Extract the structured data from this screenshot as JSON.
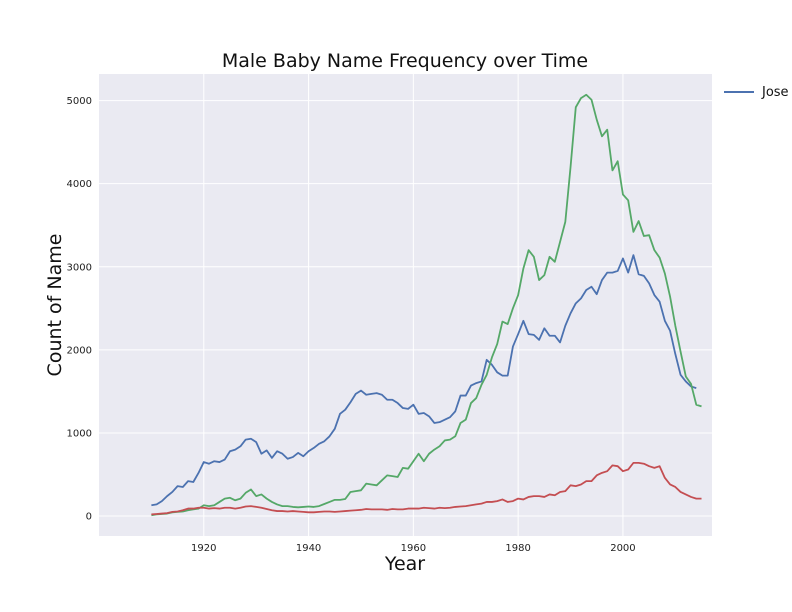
{
  "chart_data": {
    "type": "line",
    "title": "Male Baby Name Frequency over Time",
    "xlabel": "Year",
    "ylabel": "Count of Name",
    "xlim": [
      1910,
      2014
    ],
    "ylim": [
      0,
      5100
    ],
    "xticks": [
      1920,
      1940,
      1960,
      1980,
      2000
    ],
    "yticks": [
      0,
      1000,
      2000,
      3000,
      4000,
      5000
    ],
    "grid": true,
    "legend_position": "outside-right",
    "style": {
      "background": "#eaeaf2",
      "grid_color": "#ffffff"
    },
    "series": [
      {
        "name": "Jose",
        "color": "#4c72b0",
        "points": [
          [
            1910,
            130
          ],
          [
            1911,
            140
          ],
          [
            1912,
            180
          ],
          [
            1913,
            240
          ],
          [
            1914,
            290
          ],
          [
            1915,
            360
          ],
          [
            1916,
            350
          ],
          [
            1917,
            420
          ],
          [
            1918,
            410
          ],
          [
            1919,
            520
          ],
          [
            1920,
            650
          ],
          [
            1921,
            630
          ],
          [
            1922,
            660
          ],
          [
            1923,
            650
          ],
          [
            1924,
            680
          ],
          [
            1925,
            780
          ],
          [
            1926,
            800
          ],
          [
            1927,
            840
          ],
          [
            1928,
            920
          ],
          [
            1929,
            930
          ],
          [
            1930,
            890
          ],
          [
            1931,
            750
          ],
          [
            1932,
            790
          ],
          [
            1933,
            700
          ],
          [
            1934,
            780
          ],
          [
            1935,
            750
          ],
          [
            1936,
            690
          ],
          [
            1937,
            710
          ],
          [
            1938,
            760
          ],
          [
            1939,
            720
          ],
          [
            1940,
            780
          ],
          [
            1941,
            820
          ],
          [
            1942,
            870
          ],
          [
            1943,
            900
          ],
          [
            1944,
            960
          ],
          [
            1945,
            1050
          ],
          [
            1946,
            1230
          ],
          [
            1947,
            1280
          ],
          [
            1948,
            1370
          ],
          [
            1949,
            1470
          ],
          [
            1950,
            1510
          ],
          [
            1951,
            1460
          ],
          [
            1952,
            1470
          ],
          [
            1953,
            1480
          ],
          [
            1954,
            1460
          ],
          [
            1955,
            1400
          ],
          [
            1956,
            1400
          ],
          [
            1957,
            1360
          ],
          [
            1958,
            1300
          ],
          [
            1959,
            1290
          ],
          [
            1960,
            1340
          ],
          [
            1961,
            1230
          ],
          [
            1962,
            1240
          ],
          [
            1963,
            1200
          ],
          [
            1964,
            1120
          ],
          [
            1965,
            1130
          ],
          [
            1966,
            1160
          ],
          [
            1967,
            1190
          ],
          [
            1968,
            1260
          ],
          [
            1969,
            1450
          ],
          [
            1970,
            1450
          ],
          [
            1971,
            1570
          ],
          [
            1972,
            1600
          ],
          [
            1973,
            1620
          ],
          [
            1974,
            1880
          ],
          [
            1975,
            1820
          ],
          [
            1976,
            1730
          ],
          [
            1977,
            1690
          ],
          [
            1978,
            1690
          ],
          [
            1979,
            2040
          ],
          [
            1980,
            2190
          ],
          [
            1981,
            2350
          ],
          [
            1982,
            2190
          ],
          [
            1983,
            2180
          ],
          [
            1984,
            2120
          ],
          [
            1985,
            2260
          ],
          [
            1986,
            2170
          ],
          [
            1987,
            2170
          ],
          [
            1988,
            2090
          ],
          [
            1989,
            2290
          ],
          [
            1990,
            2440
          ],
          [
            1991,
            2560
          ],
          [
            1992,
            2620
          ],
          [
            1993,
            2720
          ],
          [
            1994,
            2760
          ],
          [
            1995,
            2670
          ],
          [
            1996,
            2840
          ],
          [
            1997,
            2930
          ],
          [
            1998,
            2930
          ],
          [
            1999,
            2950
          ],
          [
            2000,
            3100
          ],
          [
            2001,
            2930
          ],
          [
            2002,
            3140
          ],
          [
            2003,
            2910
          ],
          [
            2004,
            2890
          ],
          [
            2005,
            2800
          ],
          [
            2006,
            2660
          ],
          [
            2007,
            2580
          ],
          [
            2008,
            2350
          ],
          [
            2009,
            2230
          ],
          [
            2010,
            1950
          ],
          [
            2011,
            1700
          ],
          [
            2012,
            1620
          ],
          [
            2013,
            1560
          ],
          [
            2014,
            1540
          ]
        ]
      },
      {
        "color": "#55a868",
        "points": [
          [
            1910,
            10
          ],
          [
            1911,
            20
          ],
          [
            1912,
            25
          ],
          [
            1913,
            30
          ],
          [
            1914,
            45
          ],
          [
            1915,
            50
          ],
          [
            1916,
            55
          ],
          [
            1917,
            70
          ],
          [
            1918,
            80
          ],
          [
            1919,
            90
          ],
          [
            1920,
            130
          ],
          [
            1921,
            120
          ],
          [
            1922,
            130
          ],
          [
            1923,
            170
          ],
          [
            1924,
            210
          ],
          [
            1925,
            220
          ],
          [
            1926,
            190
          ],
          [
            1927,
            210
          ],
          [
            1928,
            280
          ],
          [
            1929,
            320
          ],
          [
            1930,
            240
          ],
          [
            1931,
            260
          ],
          [
            1932,
            210
          ],
          [
            1933,
            170
          ],
          [
            1934,
            140
          ],
          [
            1935,
            120
          ],
          [
            1936,
            120
          ],
          [
            1937,
            110
          ],
          [
            1938,
            105
          ],
          [
            1939,
            110
          ],
          [
            1940,
            115
          ],
          [
            1941,
            110
          ],
          [
            1942,
            120
          ],
          [
            1943,
            145
          ],
          [
            1944,
            170
          ],
          [
            1945,
            195
          ],
          [
            1946,
            195
          ],
          [
            1947,
            205
          ],
          [
            1948,
            290
          ],
          [
            1949,
            300
          ],
          [
            1950,
            310
          ],
          [
            1951,
            390
          ],
          [
            1952,
            380
          ],
          [
            1953,
            370
          ],
          [
            1954,
            430
          ],
          [
            1955,
            490
          ],
          [
            1956,
            480
          ],
          [
            1957,
            470
          ],
          [
            1958,
            580
          ],
          [
            1959,
            570
          ],
          [
            1960,
            660
          ],
          [
            1961,
            750
          ],
          [
            1962,
            660
          ],
          [
            1963,
            750
          ],
          [
            1964,
            800
          ],
          [
            1965,
            840
          ],
          [
            1966,
            910
          ],
          [
            1967,
            920
          ],
          [
            1968,
            960
          ],
          [
            1969,
            1120
          ],
          [
            1970,
            1160
          ],
          [
            1971,
            1360
          ],
          [
            1972,
            1420
          ],
          [
            1973,
            1580
          ],
          [
            1974,
            1700
          ],
          [
            1975,
            1910
          ],
          [
            1976,
            2070
          ],
          [
            1977,
            2340
          ],
          [
            1978,
            2310
          ],
          [
            1979,
            2500
          ],
          [
            1980,
            2660
          ],
          [
            1981,
            2980
          ],
          [
            1982,
            3200
          ],
          [
            1983,
            3120
          ],
          [
            1984,
            2840
          ],
          [
            1985,
            2900
          ],
          [
            1986,
            3120
          ],
          [
            1987,
            3060
          ],
          [
            1988,
            3300
          ],
          [
            1989,
            3540
          ],
          [
            1990,
            4200
          ],
          [
            1991,
            4920
          ],
          [
            1992,
            5030
          ],
          [
            1993,
            5070
          ],
          [
            1994,
            5010
          ],
          [
            1995,
            4770
          ],
          [
            1996,
            4570
          ],
          [
            1997,
            4650
          ],
          [
            1998,
            4160
          ],
          [
            1999,
            4270
          ],
          [
            2000,
            3870
          ],
          [
            2001,
            3800
          ],
          [
            2002,
            3420
          ],
          [
            2003,
            3550
          ],
          [
            2004,
            3370
          ],
          [
            2005,
            3380
          ],
          [
            2006,
            3200
          ],
          [
            2007,
            3110
          ],
          [
            2008,
            2920
          ],
          [
            2009,
            2640
          ],
          [
            2010,
            2290
          ],
          [
            2011,
            1980
          ],
          [
            2012,
            1680
          ],
          [
            2013,
            1590
          ],
          [
            2014,
            1340
          ],
          [
            2015,
            1320
          ]
        ]
      },
      {
        "color": "#c44e52",
        "points": [
          [
            1910,
            20
          ],
          [
            1911,
            25
          ],
          [
            1912,
            30
          ],
          [
            1913,
            35
          ],
          [
            1914,
            50
          ],
          [
            1915,
            55
          ],
          [
            1916,
            70
          ],
          [
            1917,
            90
          ],
          [
            1918,
            90
          ],
          [
            1919,
            100
          ],
          [
            1920,
            100
          ],
          [
            1921,
            90
          ],
          [
            1922,
            95
          ],
          [
            1923,
            90
          ],
          [
            1924,
            100
          ],
          [
            1925,
            100
          ],
          [
            1926,
            90
          ],
          [
            1927,
            100
          ],
          [
            1928,
            115
          ],
          [
            1929,
            120
          ],
          [
            1930,
            110
          ],
          [
            1931,
            100
          ],
          [
            1932,
            85
          ],
          [
            1933,
            70
          ],
          [
            1934,
            60
          ],
          [
            1935,
            60
          ],
          [
            1936,
            55
          ],
          [
            1937,
            60
          ],
          [
            1938,
            55
          ],
          [
            1939,
            50
          ],
          [
            1940,
            45
          ],
          [
            1941,
            45
          ],
          [
            1942,
            50
          ],
          [
            1943,
            55
          ],
          [
            1944,
            55
          ],
          [
            1945,
            50
          ],
          [
            1946,
            55
          ],
          [
            1947,
            60
          ],
          [
            1948,
            65
          ],
          [
            1949,
            70
          ],
          [
            1950,
            75
          ],
          [
            1951,
            85
          ],
          [
            1952,
            80
          ],
          [
            1953,
            80
          ],
          [
            1954,
            80
          ],
          [
            1955,
            75
          ],
          [
            1956,
            85
          ],
          [
            1957,
            80
          ],
          [
            1958,
            80
          ],
          [
            1959,
            90
          ],
          [
            1960,
            90
          ],
          [
            1961,
            90
          ],
          [
            1962,
            100
          ],
          [
            1963,
            95
          ],
          [
            1964,
            90
          ],
          [
            1965,
            100
          ],
          [
            1966,
            95
          ],
          [
            1967,
            100
          ],
          [
            1968,
            110
          ],
          [
            1969,
            115
          ],
          [
            1970,
            120
          ],
          [
            1971,
            130
          ],
          [
            1972,
            140
          ],
          [
            1973,
            150
          ],
          [
            1974,
            170
          ],
          [
            1975,
            170
          ],
          [
            1976,
            180
          ],
          [
            1977,
            200
          ],
          [
            1978,
            170
          ],
          [
            1979,
            180
          ],
          [
            1980,
            210
          ],
          [
            1981,
            200
          ],
          [
            1982,
            230
          ],
          [
            1983,
            240
          ],
          [
            1984,
            240
          ],
          [
            1985,
            230
          ],
          [
            1986,
            260
          ],
          [
            1987,
            250
          ],
          [
            1988,
            290
          ],
          [
            1989,
            300
          ],
          [
            1990,
            370
          ],
          [
            1991,
            360
          ],
          [
            1992,
            380
          ],
          [
            1993,
            420
          ],
          [
            1994,
            420
          ],
          [
            1995,
            490
          ],
          [
            1996,
            520
          ],
          [
            1997,
            540
          ],
          [
            1998,
            610
          ],
          [
            1999,
            600
          ],
          [
            2000,
            540
          ],
          [
            2001,
            560
          ],
          [
            2002,
            640
          ],
          [
            2003,
            640
          ],
          [
            2004,
            630
          ],
          [
            2005,
            600
          ],
          [
            2006,
            580
          ],
          [
            2007,
            600
          ],
          [
            2008,
            460
          ],
          [
            2009,
            380
          ],
          [
            2010,
            350
          ],
          [
            2011,
            290
          ],
          [
            2012,
            260
          ],
          [
            2013,
            230
          ],
          [
            2014,
            210
          ],
          [
            2015,
            210
          ]
        ]
      }
    ]
  }
}
